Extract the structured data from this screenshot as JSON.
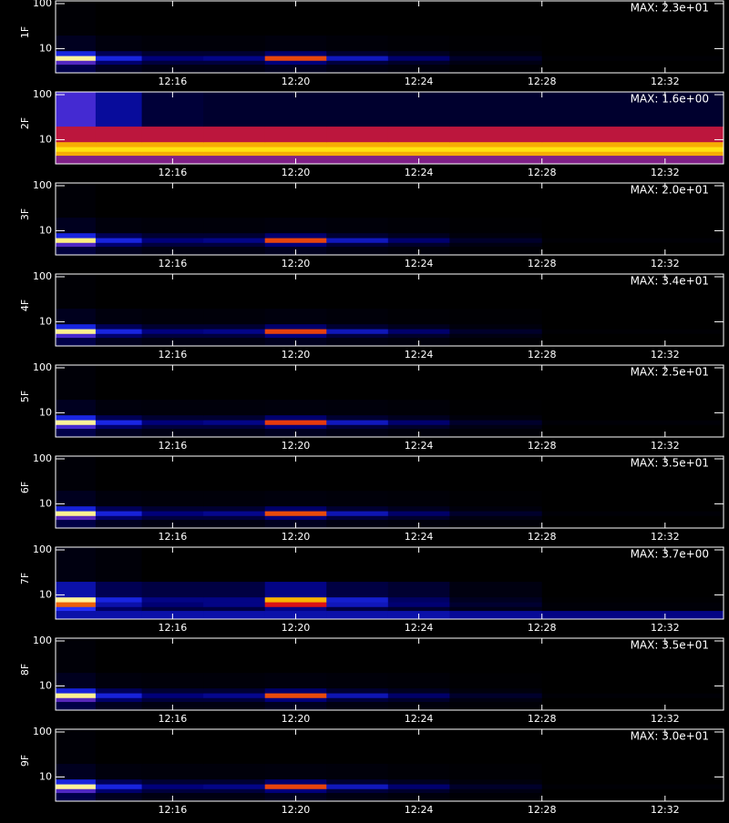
{
  "chart_data": [
    {
      "type": "heatmap",
      "ylabel": "1F",
      "annotation": "MAX: 2.3e+01",
      "log_y": true,
      "colormap": [
        "#000000",
        "#00007a",
        "#2030ff",
        "#e01010",
        "#ffe000",
        "#ffffff"
      ],
      "xlim": [
        732.2,
        753.9
      ],
      "ylim": [
        2.9,
        115
      ],
      "xticks": [
        {
          "value": 736,
          "label": "12:16"
        },
        {
          "value": 740,
          "label": "12:20"
        },
        {
          "value": 744,
          "label": "12:24"
        },
        {
          "value": 748,
          "label": "12:28"
        },
        {
          "value": 752,
          "label": "12:32"
        }
      ],
      "yticks": [
        10,
        100
      ],
      "xbins": [
        732.2,
        733.5,
        735,
        737,
        739,
        741,
        743,
        745,
        748,
        753.9
      ],
      "ybins": [
        2.9,
        4.5,
        5.5,
        7,
        9,
        20,
        115
      ],
      "zlim": [
        0,
        23
      ],
      "z": [
        [
          2.8,
          1.2,
          0.7,
          0.7,
          1.2,
          0.7,
          0.5,
          0.2,
          0
        ],
        [
          10.4,
          4.1,
          2.3,
          2.3,
          4.6,
          2.3,
          1.6,
          0.7,
          0
        ],
        [
          21.2,
          8.1,
          4.6,
          5.1,
          15,
          6.9,
          4.1,
          1.6,
          0.2
        ],
        [
          8.1,
          3.2,
          1.8,
          1.8,
          4.1,
          1.8,
          1.2,
          0.5,
          0
        ],
        [
          1.2,
          0.5,
          0.3,
          0.3,
          0.5,
          0.3,
          0.2,
          0.1,
          0
        ],
        [
          0.2,
          0,
          0,
          0,
          0,
          0,
          0,
          0,
          0
        ]
      ]
    },
    {
      "type": "heatmap",
      "ylabel": "2F",
      "annotation": "MAX: 1.6e+00",
      "log_y": true,
      "colormap": [
        "#000000",
        "#00007a",
        "#2030ff",
        "#e01010",
        "#ffe000",
        "#ffffff"
      ],
      "xlim": [
        732.2,
        753.9
      ],
      "ylim": [
        2.9,
        115
      ],
      "xticks": [
        {
          "value": 736,
          "label": "12:16"
        },
        {
          "value": 740,
          "label": "12:20"
        },
        {
          "value": 744,
          "label": "12:24"
        },
        {
          "value": 748,
          "label": "12:28"
        },
        {
          "value": 752,
          "label": "12:32"
        }
      ],
      "yticks": [
        10,
        100
      ],
      "xbins": [
        732.2,
        733.5,
        735,
        737,
        739,
        741,
        743,
        745,
        748,
        753.9
      ],
      "ybins": [
        2.9,
        4.5,
        5.5,
        7,
        9,
        20,
        115
      ],
      "zlim": [
        0,
        1.6
      ],
      "z": [
        [
          0.8,
          0.8,
          0.8,
          0.8,
          0.8,
          0.8,
          0.8,
          0.8,
          0.8
        ],
        [
          1.2,
          1.2,
          1.2,
          1.2,
          1.2,
          1.2,
          1.2,
          1.2,
          1.2
        ],
        [
          1.3,
          1.3,
          1.3,
          1.3,
          1.3,
          1.3,
          1.3,
          1.3,
          1.3
        ],
        [
          1.2,
          1.2,
          1.2,
          1.2,
          1.2,
          1.2,
          1.2,
          1.2,
          1.2
        ],
        [
          0.9,
          0.9,
          0.9,
          0.9,
          0.9,
          0.9,
          0.9,
          0.9,
          0.9
        ],
        [
          0.7,
          0.4,
          0.15,
          0.12,
          0.12,
          0.12,
          0.12,
          0.12,
          0.12
        ]
      ]
    },
    {
      "type": "heatmap",
      "ylabel": "3F",
      "annotation": "MAX: 2.0e+01",
      "log_y": true,
      "colormap": [
        "#000000",
        "#00007a",
        "#2030ff",
        "#e01010",
        "#ffe000",
        "#ffffff"
      ],
      "xlim": [
        732.2,
        753.9
      ],
      "ylim": [
        2.9,
        115
      ],
      "xticks": [
        {
          "value": 736,
          "label": "12:16"
        },
        {
          "value": 740,
          "label": "12:20"
        },
        {
          "value": 744,
          "label": "12:24"
        },
        {
          "value": 748,
          "label": "12:28"
        },
        {
          "value": 752,
          "label": "12:32"
        }
      ],
      "yticks": [
        10,
        100
      ],
      "xbins": [
        732.2,
        733.5,
        735,
        737,
        739,
        741,
        743,
        745,
        748,
        753.9
      ],
      "ybins": [
        2.9,
        4.5,
        5.5,
        7,
        9,
        20,
        115
      ],
      "zlim": [
        0,
        20
      ],
      "z": [
        [
          2,
          1,
          0.6,
          0.6,
          1,
          0.6,
          0.4,
          0.2,
          0
        ],
        [
          9,
          3.6,
          2,
          2,
          4,
          2,
          1.4,
          0.6,
          0
        ],
        [
          18,
          7,
          4,
          4.4,
          13,
          6,
          3.6,
          1.4,
          0.2
        ],
        [
          7,
          2.8,
          1.6,
          1.6,
          3.6,
          1.6,
          1,
          0.4,
          0
        ],
        [
          1,
          0.4,
          0.3,
          0.3,
          0.4,
          0.3,
          0.2,
          0.1,
          0
        ],
        [
          0.2,
          0,
          0,
          0,
          0,
          0,
          0,
          0,
          0
        ]
      ]
    },
    {
      "type": "heatmap",
      "ylabel": "4F",
      "annotation": "MAX: 3.4e+01",
      "log_y": true,
      "colormap": [
        "#000000",
        "#00007a",
        "#2030ff",
        "#e01010",
        "#ffe000",
        "#ffffff"
      ],
      "xlim": [
        732.2,
        753.9
      ],
      "ylim": [
        2.9,
        115
      ],
      "xticks": [
        {
          "value": 736,
          "label": "12:16"
        },
        {
          "value": 740,
          "label": "12:20"
        },
        {
          "value": 744,
          "label": "12:24"
        },
        {
          "value": 748,
          "label": "12:28"
        },
        {
          "value": 752,
          "label": "12:32"
        }
      ],
      "yticks": [
        10,
        100
      ],
      "xbins": [
        732.2,
        733.5,
        735,
        737,
        739,
        741,
        743,
        745,
        748,
        753.9
      ],
      "ybins": [
        2.9,
        4.5,
        5.5,
        7,
        9,
        20,
        115
      ],
      "zlim": [
        0,
        34
      ],
      "z": [
        [
          4,
          1.7,
          1,
          1,
          1.7,
          1,
          0.7,
          0.3,
          0
        ],
        [
          15,
          6,
          3.4,
          3.4,
          7,
          3.4,
          2.4,
          1,
          0
        ],
        [
          31,
          12,
          7,
          7.5,
          22,
          10,
          6,
          2.4,
          0.3
        ],
        [
          12,
          4.8,
          2.7,
          2.7,
          6,
          2.7,
          1.7,
          0.7,
          0
        ],
        [
          1.7,
          0.7,
          0.5,
          0.5,
          0.7,
          0.5,
          0.3,
          0.2,
          0
        ],
        [
          0.3,
          0,
          0,
          0,
          0,
          0,
          0,
          0,
          0
        ]
      ]
    },
    {
      "type": "heatmap",
      "ylabel": "5F",
      "annotation": "MAX: 2.5e+01",
      "log_y": true,
      "colormap": [
        "#000000",
        "#00007a",
        "#2030ff",
        "#e01010",
        "#ffe000",
        "#ffffff"
      ],
      "xlim": [
        732.2,
        753.9
      ],
      "ylim": [
        2.9,
        115
      ],
      "xticks": [
        {
          "value": 736,
          "label": "12:16"
        },
        {
          "value": 740,
          "label": "12:20"
        },
        {
          "value": 744,
          "label": "12:24"
        },
        {
          "value": 748,
          "label": "12:28"
        },
        {
          "value": 752,
          "label": "12:32"
        }
      ],
      "yticks": [
        10,
        100
      ],
      "xbins": [
        732.2,
        733.5,
        735,
        737,
        739,
        741,
        743,
        745,
        748,
        753.9
      ],
      "ybins": [
        2.9,
        4.5,
        5.5,
        7,
        9,
        20,
        115
      ],
      "zlim": [
        0,
        25
      ],
      "z": [
        [
          3,
          1.3,
          0.8,
          0.8,
          1.3,
          0.8,
          0.5,
          0.3,
          0
        ],
        [
          11,
          4.5,
          2.5,
          2.5,
          5,
          2.5,
          1.8,
          0.8,
          0
        ],
        [
          23,
          9,
          5,
          5.5,
          16,
          7.5,
          4.5,
          1.8,
          0.3
        ],
        [
          9,
          3.5,
          2,
          2,
          4.5,
          2,
          1.3,
          0.5,
          0
        ],
        [
          1.3,
          0.5,
          0.4,
          0.4,
          0.5,
          0.4,
          0.3,
          0.1,
          0
        ],
        [
          0.3,
          0,
          0,
          0,
          0,
          0,
          0,
          0,
          0
        ]
      ]
    },
    {
      "type": "heatmap",
      "ylabel": "6F",
      "annotation": "MAX: 3.5e+01",
      "log_y": true,
      "colormap": [
        "#000000",
        "#00007a",
        "#2030ff",
        "#e01010",
        "#ffe000",
        "#ffffff"
      ],
      "xlim": [
        732.2,
        753.9
      ],
      "ylim": [
        2.9,
        115
      ],
      "xticks": [
        {
          "value": 736,
          "label": "12:16"
        },
        {
          "value": 740,
          "label": "12:20"
        },
        {
          "value": 744,
          "label": "12:24"
        },
        {
          "value": 748,
          "label": "12:28"
        },
        {
          "value": 752,
          "label": "12:32"
        }
      ],
      "yticks": [
        10,
        100
      ],
      "xbins": [
        732.2,
        733.5,
        735,
        737,
        739,
        741,
        743,
        745,
        748,
        753.9
      ],
      "ybins": [
        2.9,
        4.5,
        5.5,
        7,
        9,
        20,
        115
      ],
      "zlim": [
        0,
        35
      ],
      "z": [
        [
          4,
          1.8,
          1,
          1,
          1.8,
          1,
          0.7,
          0.4,
          0
        ],
        [
          16,
          6,
          3.5,
          3.5,
          7,
          3.5,
          2.5,
          1,
          0
        ],
        [
          32,
          12,
          7,
          8,
          23,
          10,
          6,
          2.5,
          0.4
        ],
        [
          12,
          5,
          2.8,
          2.8,
          6,
          2.8,
          1.8,
          0.7,
          0
        ],
        [
          1.8,
          0.7,
          0.5,
          0.5,
          0.7,
          0.5,
          0.4,
          0.2,
          0
        ],
        [
          0.4,
          0,
          0,
          0,
          0,
          0,
          0,
          0,
          0
        ]
      ]
    },
    {
      "type": "heatmap",
      "ylabel": "7F",
      "annotation": "MAX: 3.7e+00",
      "log_y": true,
      "colormap": [
        "#000000",
        "#00007a",
        "#2030ff",
        "#e01010",
        "#ffe000",
        "#ffffff"
      ],
      "xlim": [
        732.2,
        753.9
      ],
      "ylim": [
        2.9,
        115
      ],
      "xticks": [
        {
          "value": 736,
          "label": "12:16"
        },
        {
          "value": 740,
          "label": "12:20"
        },
        {
          "value": 744,
          "label": "12:24"
        },
        {
          "value": 748,
          "label": "12:28"
        },
        {
          "value": 752,
          "label": "12:32"
        }
      ],
      "yticks": [
        10,
        100
      ],
      "xbins": [
        732.2,
        733.5,
        735,
        737,
        739,
        741,
        743,
        745,
        748,
        753.9
      ],
      "ybins": [
        2.9,
        4.5,
        5.5,
        7,
        9,
        20,
        115
      ],
      "zlim": [
        0,
        3.7
      ],
      "z": [
        [
          1,
          1,
          1,
          1,
          1,
          1,
          1,
          0.9,
          0.8
        ],
        [
          1.5,
          0.6,
          0.4,
          0.4,
          0.8,
          0.4,
          0.3,
          0.15,
          0.05
        ],
        [
          2.5,
          1,
          0.7,
          0.8,
          2.2,
          1.1,
          0.7,
          0.3,
          0.05
        ],
        [
          3.4,
          1.3,
          0.8,
          0.8,
          2.8,
          1.2,
          0.6,
          0.2,
          0.02
        ],
        [
          1,
          0.5,
          0.4,
          0.4,
          0.8,
          0.4,
          0.3,
          0.1,
          0
        ],
        [
          0.1,
          0.05,
          0,
          0,
          0,
          0,
          0,
          0,
          0
        ]
      ]
    },
    {
      "type": "heatmap",
      "ylabel": "8F",
      "annotation": "MAX: 3.5e+01",
      "log_y": true,
      "colormap": [
        "#000000",
        "#00007a",
        "#2030ff",
        "#e01010",
        "#ffe000",
        "#ffffff"
      ],
      "xlim": [
        732.2,
        753.9
      ],
      "ylim": [
        2.9,
        115
      ],
      "xticks": [
        {
          "value": 736,
          "label": "12:16"
        },
        {
          "value": 740,
          "label": "12:20"
        },
        {
          "value": 744,
          "label": "12:24"
        },
        {
          "value": 748,
          "label": "12:28"
        },
        {
          "value": 752,
          "label": "12:32"
        }
      ],
      "yticks": [
        10,
        100
      ],
      "xbins": [
        732.2,
        733.5,
        735,
        737,
        739,
        741,
        743,
        745,
        748,
        753.9
      ],
      "ybins": [
        2.9,
        4.5,
        5.5,
        7,
        9,
        20,
        115
      ],
      "zlim": [
        0,
        35
      ],
      "z": [
        [
          4,
          1.8,
          1,
          1,
          1.8,
          1,
          0.7,
          0.4,
          0
        ],
        [
          16,
          6,
          3.5,
          3.5,
          7,
          3.5,
          2.5,
          1,
          0
        ],
        [
          32,
          12,
          7,
          8,
          23,
          10,
          6,
          2.5,
          0.4
        ],
        [
          12,
          5,
          2.8,
          2.8,
          6,
          2.8,
          1.8,
          0.7,
          0
        ],
        [
          1.8,
          0.7,
          0.5,
          0.5,
          0.7,
          0.5,
          0.4,
          0.2,
          0
        ],
        [
          0.4,
          0,
          0,
          0,
          0,
          0,
          0,
          0,
          0
        ]
      ]
    },
    {
      "type": "heatmap",
      "ylabel": "9F",
      "annotation": "MAX: 3.0e+01",
      "log_y": true,
      "colormap": [
        "#000000",
        "#00007a",
        "#2030ff",
        "#e01010",
        "#ffe000",
        "#ffffff"
      ],
      "xlim": [
        732.2,
        753.9
      ],
      "ylim": [
        2.9,
        115
      ],
      "xticks": [
        {
          "value": 736,
          "label": "12:16"
        },
        {
          "value": 740,
          "label": "12:20"
        },
        {
          "value": 744,
          "label": "12:24"
        },
        {
          "value": 748,
          "label": "12:28"
        },
        {
          "value": 752,
          "label": "12:32"
        }
      ],
      "yticks": [
        10,
        100
      ],
      "xbins": [
        732.2,
        733.5,
        735,
        737,
        739,
        741,
        743,
        745,
        748,
        753.9
      ],
      "ybins": [
        2.9,
        4.5,
        5.5,
        7,
        9,
        20,
        115
      ],
      "zlim": [
        0,
        30
      ],
      "z": [
        [
          3.6,
          1.5,
          0.9,
          0.9,
          1.5,
          0.9,
          0.6,
          0.3,
          0
        ],
        [
          13.5,
          5.4,
          3,
          3,
          6,
          3,
          2.1,
          0.9,
          0
        ],
        [
          27.6,
          10.5,
          6,
          6.6,
          19.5,
          9,
          5.4,
          2.1,
          0.3
        ],
        [
          10.5,
          4.2,
          2.4,
          2.4,
          5.4,
          2.4,
          1.5,
          0.6,
          0
        ],
        [
          1.5,
          0.6,
          0.5,
          0.5,
          0.6,
          0.5,
          0.3,
          0.2,
          0
        ],
        [
          0.3,
          0,
          0,
          0,
          0,
          0,
          0,
          0,
          0
        ]
      ]
    }
  ]
}
